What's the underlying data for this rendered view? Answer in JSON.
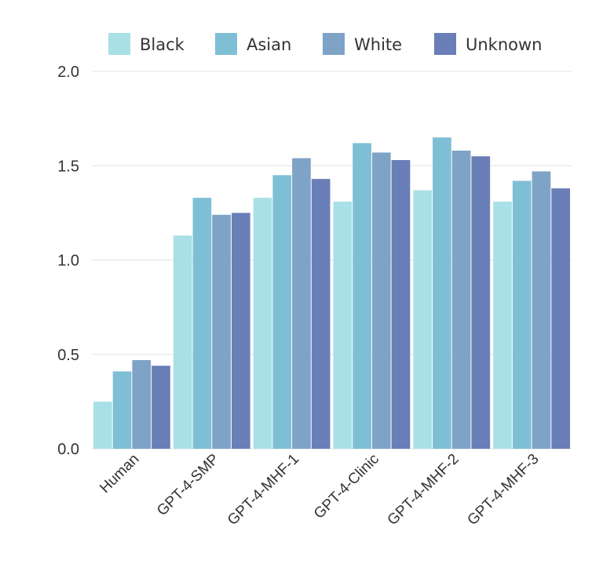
{
  "chart_data": {
    "type": "bar",
    "categories": [
      "Human",
      "GPT-4-SMP",
      "GPT-4-MHF-1",
      "GPT-4-Clinic",
      "GPT-4-MHF-2",
      "GPT-4-MHF-3"
    ],
    "series": [
      {
        "name": "Black",
        "color": "#a9e0e6",
        "values": [
          0.25,
          1.13,
          1.33,
          1.31,
          1.37,
          1.31
        ]
      },
      {
        "name": "Asian",
        "color": "#7fbfd6",
        "values": [
          0.41,
          1.33,
          1.45,
          1.62,
          1.65,
          1.42
        ]
      },
      {
        "name": "White",
        "color": "#7ea3c6",
        "values": [
          0.47,
          1.24,
          1.54,
          1.57,
          1.58,
          1.47
        ]
      },
      {
        "name": "Unknown",
        "color": "#6a7eb8",
        "values": [
          0.44,
          1.25,
          1.43,
          1.53,
          1.55,
          1.38
        ]
      }
    ],
    "yticks": [
      "0.0",
      "0.5",
      "1.0",
      "1.5",
      "2.0"
    ],
    "ylim": [
      0,
      2.0
    ],
    "grid": true,
    "legend_position": "top"
  }
}
